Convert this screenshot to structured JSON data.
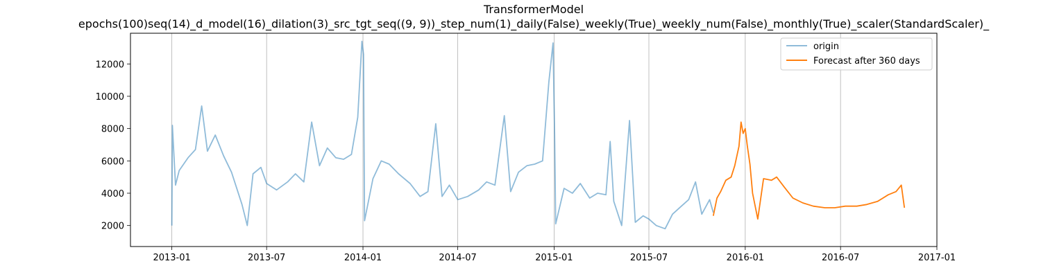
{
  "chart_data": {
    "type": "line",
    "title": "TransformerModel",
    "subtitle": "epochs(100)seq(14)_d_model(16)_dilation(3)_src_tgt_seq((9, 9))_step_num(1)_daily(False)_weekly(True)_weekly_num(False)_monthly(True)_scaler(StandardScaler)_",
    "xlabel": "",
    "ylabel": "",
    "x_range": [
      "2012-10-14",
      "2017-01-01"
    ],
    "ylim": [
      700,
      13900
    ],
    "grid": "vertical lines at x ticks",
    "legend_placement": "top-right",
    "x_ticks": [
      {
        "date": "2013-01-01",
        "label": "2013-01"
      },
      {
        "date": "2013-07-01",
        "label": "2013-07"
      },
      {
        "date": "2014-01-01",
        "label": "2014-01"
      },
      {
        "date": "2014-07-01",
        "label": "2014-07"
      },
      {
        "date": "2015-01-01",
        "label": "2015-01"
      },
      {
        "date": "2015-07-01",
        "label": "2015-07"
      },
      {
        "date": "2016-01-01",
        "label": "2016-01"
      },
      {
        "date": "2016-07-01",
        "label": "2016-07"
      },
      {
        "date": "2017-01-01",
        "label": "2017-01"
      }
    ],
    "y_ticks": [
      2000,
      4000,
      6000,
      8000,
      10000,
      12000
    ],
    "series": [
      {
        "name": "origin",
        "color": "#1f77b4",
        "opacity": 0.5,
        "points": [
          [
            "2013-01-01",
            2000
          ],
          [
            "2013-01-02",
            8200
          ],
          [
            "2013-01-08",
            4500
          ],
          [
            "2013-01-15",
            5400
          ],
          [
            "2013-02-01",
            6200
          ],
          [
            "2013-02-15",
            6700
          ],
          [
            "2013-02-27",
            9400
          ],
          [
            "2013-03-10",
            6600
          ],
          [
            "2013-03-25",
            7600
          ],
          [
            "2013-04-10",
            6300
          ],
          [
            "2013-04-25",
            5300
          ],
          [
            "2013-05-15",
            3300
          ],
          [
            "2013-05-25",
            2000
          ],
          [
            "2013-06-05",
            5200
          ],
          [
            "2013-06-20",
            5600
          ],
          [
            "2013-07-01",
            4600
          ],
          [
            "2013-07-20",
            4200
          ],
          [
            "2013-08-10",
            4700
          ],
          [
            "2013-08-25",
            5200
          ],
          [
            "2013-09-10",
            4700
          ],
          [
            "2013-09-25",
            8400
          ],
          [
            "2013-10-10",
            5700
          ],
          [
            "2013-10-25",
            6800
          ],
          [
            "2013-11-10",
            6200
          ],
          [
            "2013-11-25",
            6100
          ],
          [
            "2013-12-10",
            6400
          ],
          [
            "2013-12-22",
            8700
          ],
          [
            "2013-12-30",
            13400
          ],
          [
            "2014-01-02",
            12600
          ],
          [
            "2014-01-04",
            2300
          ],
          [
            "2014-01-20",
            4900
          ],
          [
            "2014-02-05",
            6000
          ],
          [
            "2014-02-20",
            5800
          ],
          [
            "2014-03-10",
            5200
          ],
          [
            "2014-04-01",
            4600
          ],
          [
            "2014-04-20",
            3800
          ],
          [
            "2014-05-05",
            4100
          ],
          [
            "2014-05-20",
            8300
          ],
          [
            "2014-06-01",
            3800
          ],
          [
            "2014-06-15",
            4500
          ],
          [
            "2014-07-01",
            3600
          ],
          [
            "2014-07-20",
            3800
          ],
          [
            "2014-08-10",
            4200
          ],
          [
            "2014-08-25",
            4700
          ],
          [
            "2014-09-10",
            4500
          ],
          [
            "2014-09-28",
            8800
          ],
          [
            "2014-10-10",
            4100
          ],
          [
            "2014-10-25",
            5300
          ],
          [
            "2014-11-10",
            5700
          ],
          [
            "2014-11-25",
            5800
          ],
          [
            "2014-12-10",
            6000
          ],
          [
            "2014-12-22",
            10900
          ],
          [
            "2014-12-30",
            13300
          ],
          [
            "2015-01-02",
            7600
          ],
          [
            "2015-01-04",
            2100
          ],
          [
            "2015-01-20",
            4300
          ],
          [
            "2015-02-05",
            4000
          ],
          [
            "2015-02-20",
            4600
          ],
          [
            "2015-03-10",
            3700
          ],
          [
            "2015-03-25",
            4000
          ],
          [
            "2015-04-10",
            3900
          ],
          [
            "2015-04-18",
            7200
          ],
          [
            "2015-04-25",
            3500
          ],
          [
            "2015-05-10",
            2000
          ],
          [
            "2015-05-25",
            8500
          ],
          [
            "2015-06-05",
            2200
          ],
          [
            "2015-06-20",
            2600
          ],
          [
            "2015-07-01",
            2400
          ],
          [
            "2015-07-15",
            2000
          ],
          [
            "2015-08-01",
            1800
          ],
          [
            "2015-08-15",
            2700
          ],
          [
            "2015-09-01",
            3200
          ],
          [
            "2015-09-15",
            3600
          ],
          [
            "2015-09-28",
            4700
          ],
          [
            "2015-10-10",
            2700
          ],
          [
            "2015-10-25",
            3600
          ],
          [
            "2015-11-01",
            2800
          ]
        ]
      },
      {
        "name": "Forecast after 360 days",
        "color": "#ff7f0e",
        "opacity": 1,
        "points": [
          [
            "2015-11-01",
            2600
          ],
          [
            "2015-11-08",
            3700
          ],
          [
            "2015-11-15",
            4100
          ],
          [
            "2015-11-25",
            4800
          ],
          [
            "2015-12-05",
            5000
          ],
          [
            "2015-12-12",
            5700
          ],
          [
            "2015-12-20",
            6900
          ],
          [
            "2015-12-24",
            8400
          ],
          [
            "2015-12-28",
            7700
          ],
          [
            "2016-01-01",
            8000
          ],
          [
            "2016-01-05",
            6900
          ],
          [
            "2016-01-10",
            5800
          ],
          [
            "2016-01-15",
            4000
          ],
          [
            "2016-01-25",
            2400
          ],
          [
            "2016-02-05",
            4900
          ],
          [
            "2016-02-20",
            4800
          ],
          [
            "2016-03-01",
            5000
          ],
          [
            "2016-03-15",
            4400
          ],
          [
            "2016-04-01",
            3700
          ],
          [
            "2016-04-20",
            3400
          ],
          [
            "2016-05-10",
            3200
          ],
          [
            "2016-06-01",
            3100
          ],
          [
            "2016-06-20",
            3100
          ],
          [
            "2016-07-10",
            3200
          ],
          [
            "2016-08-01",
            3200
          ],
          [
            "2016-08-20",
            3300
          ],
          [
            "2016-09-10",
            3500
          ],
          [
            "2016-09-30",
            3900
          ],
          [
            "2016-10-15",
            4100
          ],
          [
            "2016-10-25",
            4500
          ],
          [
            "2016-10-31",
            3100
          ]
        ]
      }
    ]
  }
}
